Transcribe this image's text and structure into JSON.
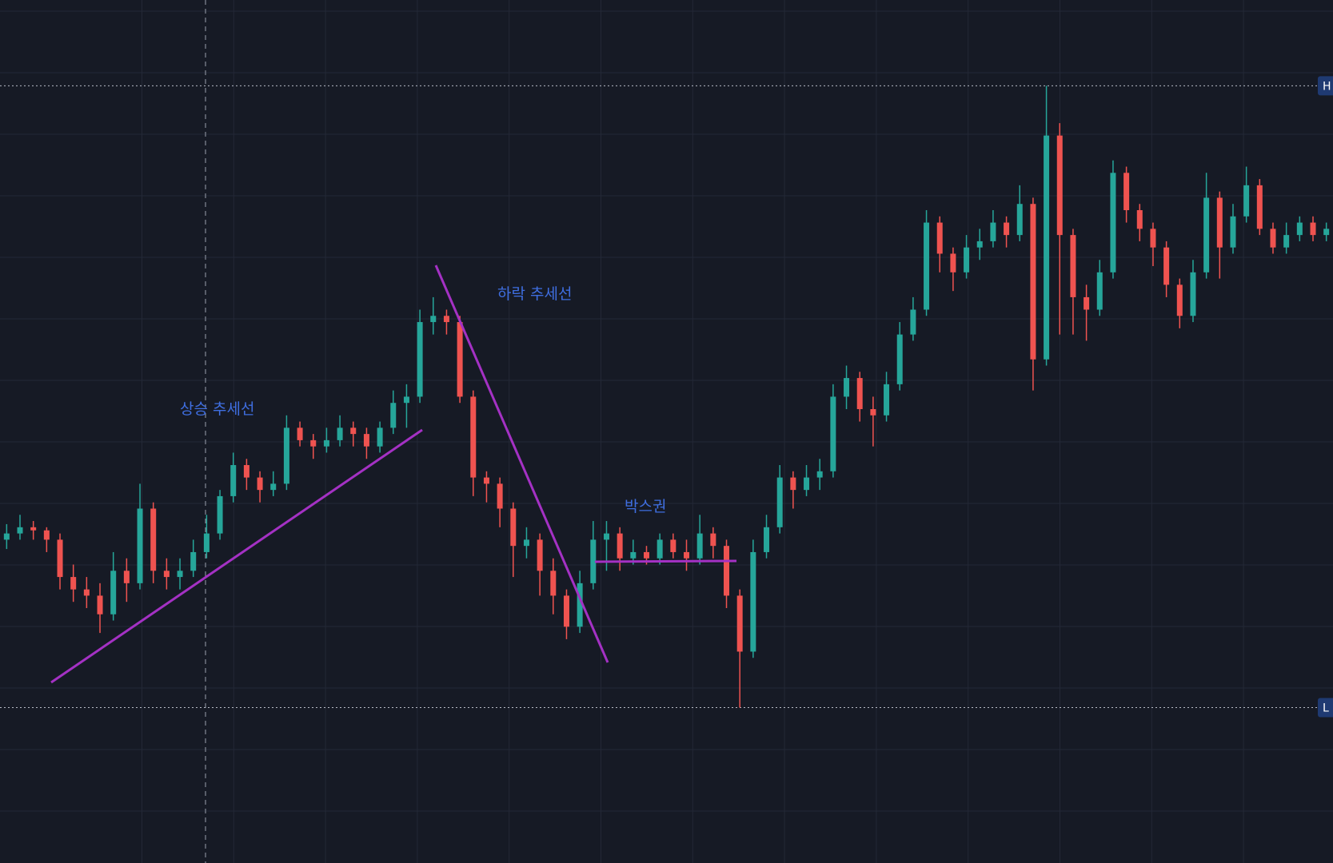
{
  "chart_data": {
    "type": "candlestick",
    "ylim": [
      -25,
      113.8
    ],
    "up_color": "#26a69a",
    "down_color": "#ef5350",
    "open": [
      27,
      28,
      29,
      28.5,
      27,
      21,
      19,
      18,
      15,
      22,
      20,
      32,
      22,
      21,
      22,
      25,
      28,
      34,
      39,
      37,
      35,
      36,
      45,
      43,
      42,
      43,
      45,
      44,
      42,
      45,
      49,
      50,
      62,
      63,
      62,
      50,
      37,
      36,
      32,
      26,
      27,
      22,
      18,
      13,
      20,
      27,
      28,
      24,
      25,
      24,
      27,
      25,
      24,
      28,
      26,
      18,
      9,
      25,
      29,
      37,
      35,
      37,
      38,
      50,
      53,
      48,
      47,
      52,
      60,
      64,
      78,
      73,
      70,
      74,
      75,
      78,
      76,
      81,
      56,
      92,
      76,
      66,
      64,
      70,
      86,
      80,
      77,
      74,
      68,
      63,
      70,
      82,
      74,
      79,
      84,
      77,
      74,
      76,
      78,
      76
    ],
    "high": [
      29.5,
      31,
      30,
      29,
      28,
      23,
      21,
      20,
      25,
      24,
      36,
      33,
      24,
      24,
      27,
      31,
      35,
      41,
      40,
      38,
      38,
      47,
      46,
      44,
      45,
      47,
      46,
      45,
      46,
      51,
      52,
      64,
      66,
      64,
      63,
      51,
      38,
      37,
      33,
      29,
      28,
      24,
      19,
      22,
      30,
      30,
      29,
      27,
      26,
      28,
      28,
      27,
      31,
      29,
      27,
      19,
      27,
      31,
      39,
      38,
      39,
      40,
      52,
      55,
      54,
      50,
      54,
      62,
      66,
      80,
      79,
      74,
      76,
      77,
      80,
      79,
      84,
      82,
      100,
      94,
      77,
      68,
      72,
      88,
      87,
      81,
      78,
      75,
      69,
      72,
      86,
      83,
      81,
      87,
      85,
      78,
      78,
      79,
      79,
      78
    ],
    "low": [
      25.5,
      27,
      27,
      25,
      19,
      17,
      16,
      12,
      14,
      17,
      19,
      20,
      19,
      19,
      21,
      24,
      27,
      33,
      35,
      33,
      34,
      35,
      42,
      40,
      41,
      42,
      42,
      40,
      41,
      44,
      45,
      49,
      60,
      60,
      49,
      34,
      33,
      29,
      21,
      24,
      18,
      15,
      11,
      12,
      19,
      22,
      22,
      23,
      23,
      23,
      24,
      22,
      23,
      24,
      16,
      0,
      8,
      24,
      28,
      32,
      34,
      35,
      37,
      48,
      46,
      42,
      46,
      51,
      59,
      63,
      70,
      67,
      69,
      72,
      74,
      74,
      75,
      51,
      55,
      60,
      60,
      59,
      63,
      69,
      78,
      75,
      71,
      66,
      61,
      62,
      69,
      69,
      73,
      78,
      76,
      73,
      73,
      75,
      75,
      75
    ],
    "close": [
      28,
      29,
      28.5,
      27,
      21,
      19,
      18,
      15,
      22,
      20,
      32,
      22,
      21,
      22,
      25,
      28,
      34,
      39,
      37,
      35,
      36,
      45,
      43,
      42,
      43,
      45,
      44,
      42,
      45,
      49,
      50,
      62,
      63,
      62,
      50,
      37,
      36,
      32,
      26,
      27,
      22,
      18,
      13,
      20,
      27,
      28,
      24,
      25,
      24,
      27,
      25,
      24,
      28,
      26,
      18,
      9,
      25,
      29,
      37,
      35,
      37,
      38,
      50,
      53,
      48,
      47,
      52,
      60,
      64,
      78,
      73,
      70,
      74,
      75,
      78,
      76,
      81,
      56,
      92,
      76,
      66,
      64,
      70,
      86,
      80,
      77,
      74,
      68,
      63,
      70,
      82,
      74,
      79,
      84,
      77,
      74,
      76,
      78,
      76,
      77
    ],
    "markers": [
      {
        "label": "H",
        "value": 100
      },
      {
        "label": "L",
        "value": 0
      }
    ],
    "annotations": [
      "상승 추세선",
      "하락 추세선",
      "박스권"
    ]
  }
}
